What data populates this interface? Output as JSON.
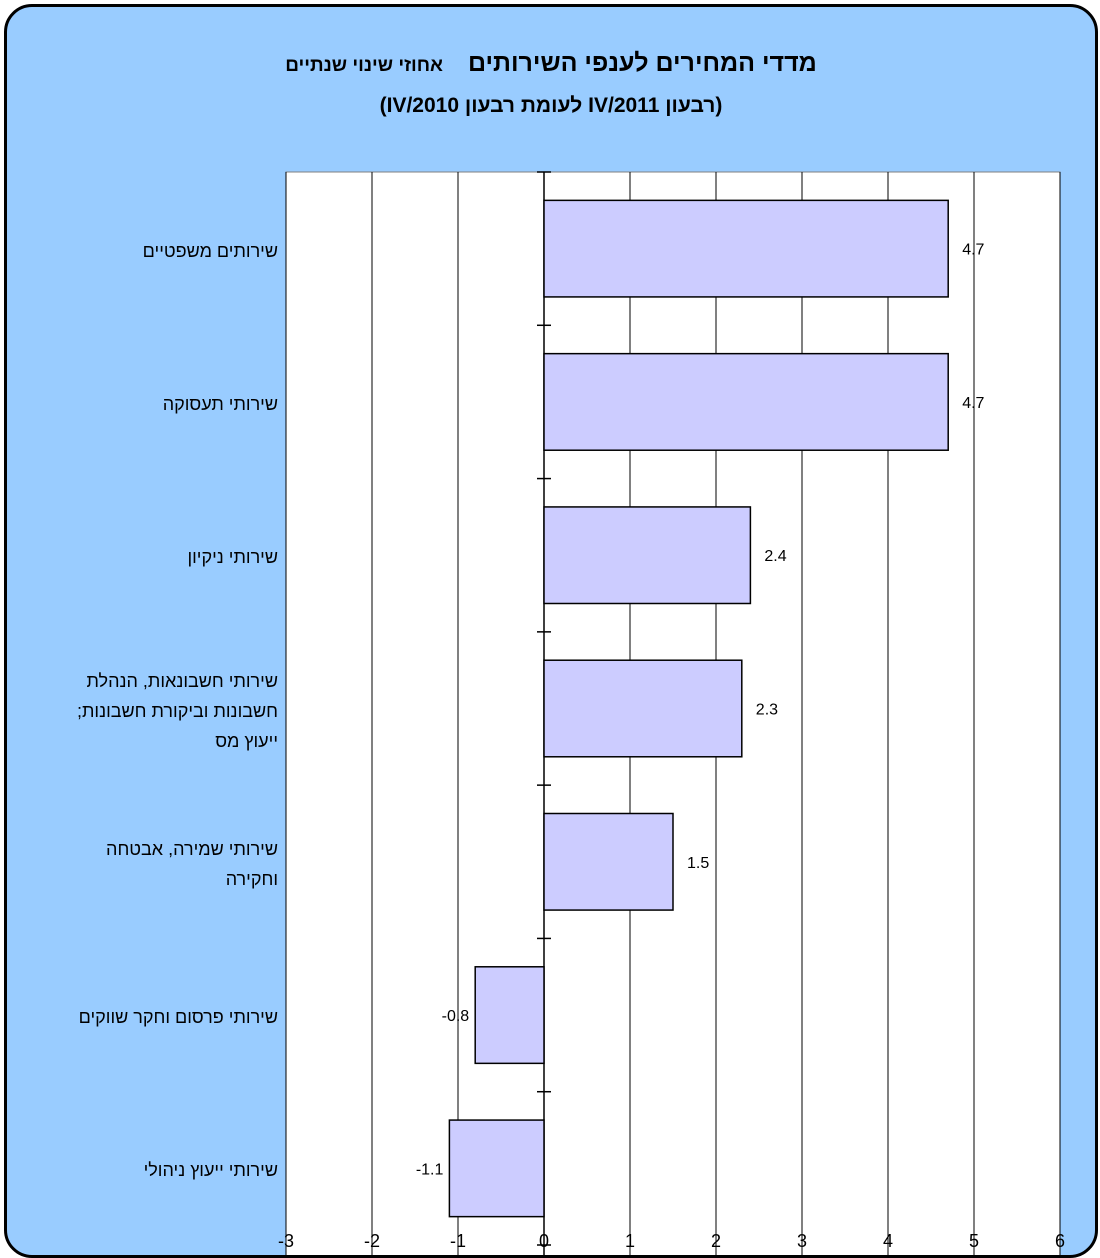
{
  "header": {
    "title": "מדדי המחירים לענפי השירותים",
    "title_suffix": "אחוזי שינוי שנתיים",
    "subtitle": "(רבעון IV/2011 לעומת רבעון IV/2010)"
  },
  "colors": {
    "background": "#99ccff",
    "plot_area": "#ffffff",
    "bar_fill": "#ccccff",
    "bar_stroke": "#000000",
    "grid": "#000000"
  },
  "chart_data": {
    "type": "bar",
    "orientation": "horizontal",
    "title": "מדדי המחירים לענפי השירותים אחוזי שינוי שנתיים",
    "subtitle": "(רבעון IV/2011 לעומת רבעון IV/2010)",
    "categories": [
      "שירותים משפטיים",
      "שירותי תעסוקה",
      "שירותי ניקיון",
      "שירותי חשבונאות, הנהלת חשבונות וביקורת חשבונות; ייעוץ מס",
      "שירותי שמירה, אבטחה וחקירה",
      "שירותי פרסום וחקר שווקים",
      "שירותי ייעוץ ניהולי"
    ],
    "category_lines": [
      [
        "שירותים משפטיים"
      ],
      [
        "שירותי תעסוקה"
      ],
      [
        "שירותי ניקיון"
      ],
      [
        " שירותי חשבונאות, הנהלת",
        "חשבונות וביקורת חשבונות;",
        "ייעוץ מס"
      ],
      [
        "שירותי שמירה, אבטחה",
        "וחקירה"
      ],
      [
        "שירותי פרסום וחקר שווקים"
      ],
      [
        "שירותי ייעוץ ניהולי"
      ]
    ],
    "values": [
      4.7,
      4.7,
      2.4,
      2.3,
      1.5,
      -0.8,
      -1.1
    ],
    "data_labels": [
      "4.7",
      "4.7",
      "2.4",
      "2.3",
      "1.5",
      "-0.8",
      "-1.1"
    ],
    "xlim": [
      -3,
      6
    ],
    "xticks": [
      -3,
      -2,
      -1,
      0,
      1,
      2,
      3,
      4,
      5,
      6
    ],
    "xtick_labels": [
      "-3",
      "-2",
      "-1",
      "0",
      "1",
      "2",
      "3",
      "4",
      "5",
      "6"
    ],
    "grid": true,
    "legend": "none"
  }
}
